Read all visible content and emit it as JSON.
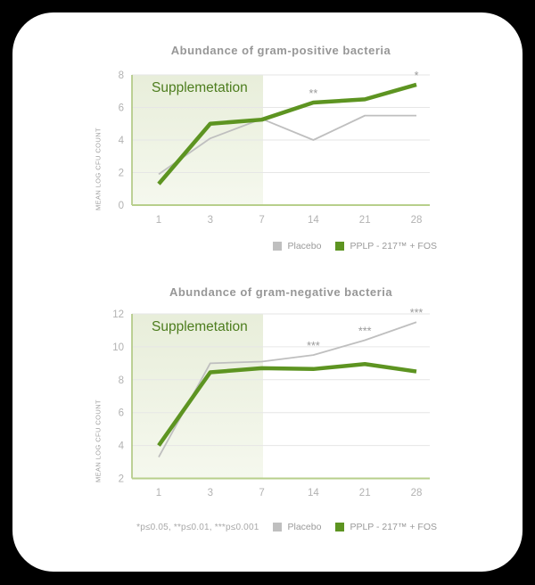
{
  "footnote": {
    "text": "*p≤0.05, **p≤0.01, ***p≤0.001"
  },
  "chart_data": [
    {
      "type": "line",
      "title": "Abundance of gram-positive bacteria",
      "xlabel": "",
      "ylabel": "MEAN LOG CFU COUNT",
      "x_categories": [
        "1",
        "3",
        "7",
        "14",
        "21",
        "28"
      ],
      "ylim": [
        0,
        8
      ],
      "yticks": [
        0,
        2,
        4,
        6,
        8
      ],
      "grid": true,
      "legend_position": "bottom-right",
      "shaded_region": {
        "label": "Supplemetation",
        "x_start": "1",
        "x_end": "7"
      },
      "series": [
        {
          "name": "Placebo",
          "color": "#bfbfbf",
          "values": [
            1.9,
            4.1,
            5.3,
            4.0,
            5.5,
            5.5
          ]
        },
        {
          "name": "PPLP - 217™ + FOS",
          "color": "#5d9421",
          "values": [
            1.3,
            5.0,
            5.25,
            6.3,
            6.5,
            7.4
          ]
        }
      ],
      "annotations": [
        {
          "x": "14",
          "series": 1,
          "text": "**"
        },
        {
          "x": "28",
          "series": 1,
          "text": "*"
        }
      ]
    },
    {
      "type": "line",
      "title": "Abundance of gram-negative bacteria",
      "xlabel": "",
      "ylabel": "MEAN LOG CFU COUNT",
      "x_categories": [
        "1",
        "3",
        "7",
        "14",
        "21",
        "28"
      ],
      "ylim": [
        2,
        12
      ],
      "yticks": [
        2,
        4,
        6,
        8,
        10,
        12
      ],
      "grid": true,
      "legend_position": "bottom-right",
      "shaded_region": {
        "label": "Supplemetation",
        "x_start": "1",
        "x_end": "7"
      },
      "series": [
        {
          "name": "Placebo",
          "color": "#bfbfbf",
          "values": [
            3.3,
            9.0,
            9.1,
            9.5,
            10.4,
            11.5
          ]
        },
        {
          "name": "PPLP - 217™ + FOS",
          "color": "#5d9421",
          "values": [
            4.0,
            8.45,
            8.7,
            8.65,
            8.95,
            8.5
          ]
        }
      ],
      "annotations": [
        {
          "x": "14",
          "series": 0,
          "text": "***"
        },
        {
          "x": "21",
          "series": 0,
          "text": "***"
        },
        {
          "x": "28",
          "series": 0,
          "text": "***"
        }
      ]
    }
  ]
}
